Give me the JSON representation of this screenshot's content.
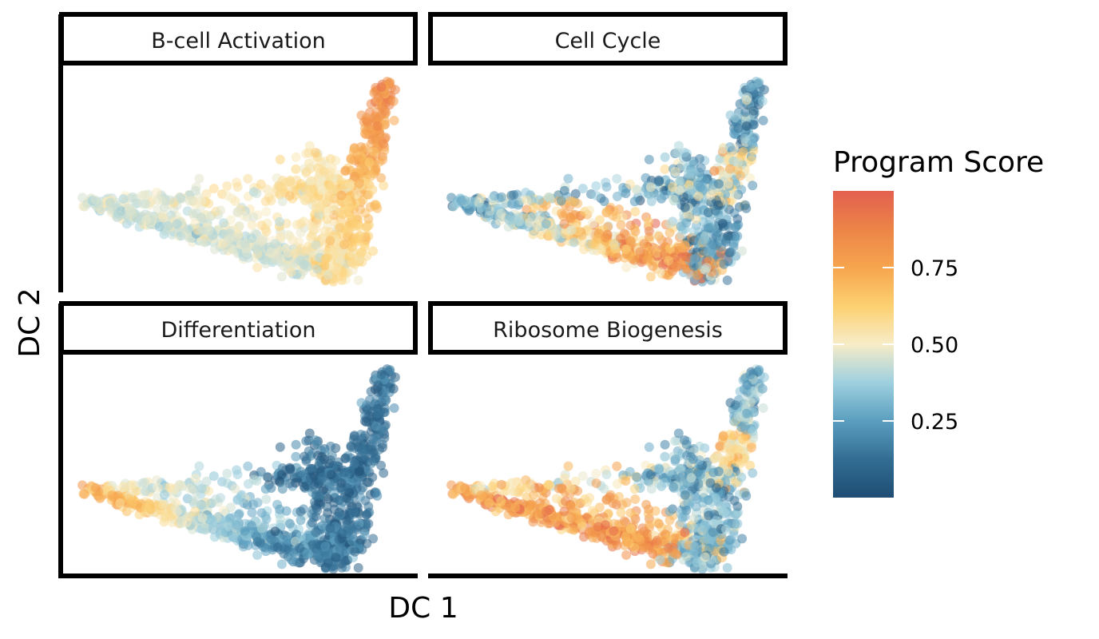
{
  "chart_data": {
    "type": "scatter",
    "xlabel": "DC 1",
    "ylabel": "DC 2",
    "legend": {
      "title": "Program Score",
      "placement": "right",
      "ticks": [
        {
          "value": 0.25,
          "label": "0.25"
        },
        {
          "value": 0.5,
          "label": "0.50"
        },
        {
          "value": 0.75,
          "label": "0.75"
        }
      ],
      "range": [
        0.0,
        1.0
      ],
      "palette": [
        "#1f4d73",
        "#336d93",
        "#5a9ebf",
        "#9ed0df",
        "#f7ecc7",
        "#fdd071",
        "#f6a54e",
        "#ec8448",
        "#e3604f"
      ]
    },
    "point_alpha": 0.55,
    "panels": [
      {
        "title": "B-cell Activation",
        "pattern": "bcell"
      },
      {
        "title": "Cell Cycle",
        "pattern": "cycle"
      },
      {
        "title": "Differentiation",
        "pattern": "diff"
      },
      {
        "title": "Ribosome Biogenesis",
        "pattern": "ribo"
      }
    ]
  }
}
